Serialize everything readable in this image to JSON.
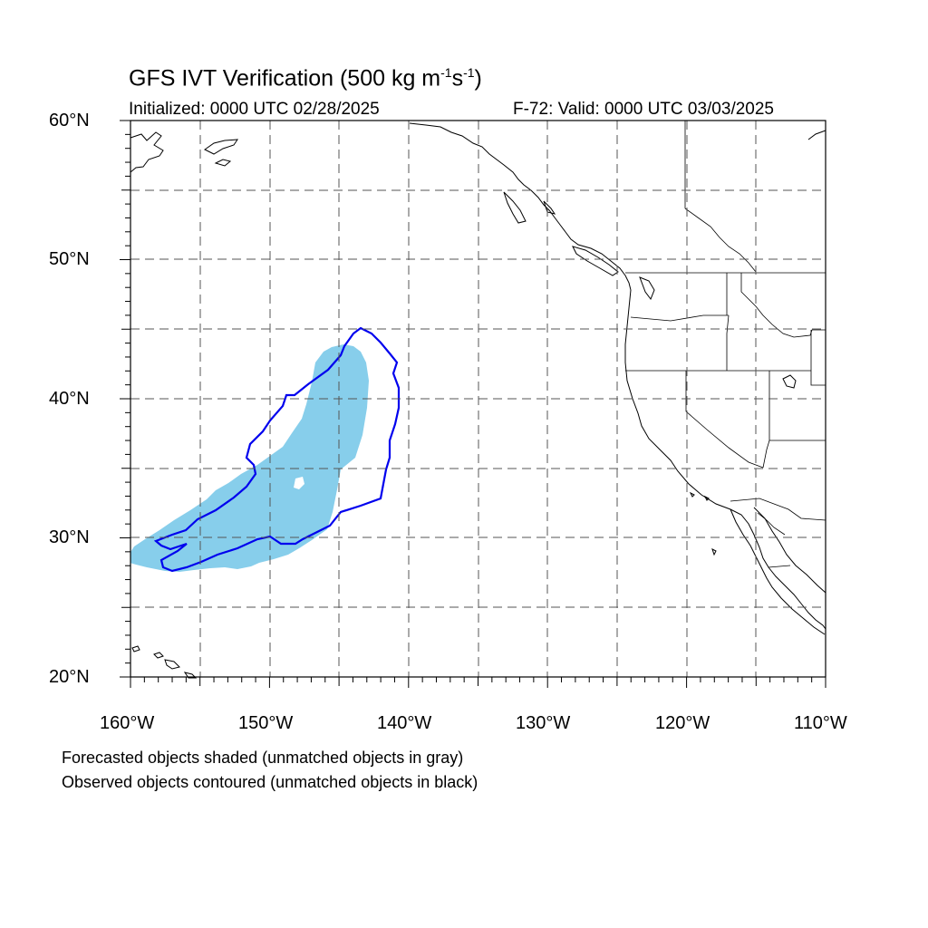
{
  "title": {
    "main": "GFS IVT Verification (500 kg m",
    "sup1": "-1",
    "mid": "s",
    "sup2": "-1",
    "end": ")"
  },
  "subtitle": {
    "initialized": "Initialized: 0000 UTC 02/28/2025",
    "valid": "F-72: Valid: 0000 UTC 03/03/2025"
  },
  "axes": {
    "lat_labels": [
      "60°N",
      "50°N",
      "40°N",
      "30°N",
      "20°N"
    ],
    "lon_labels": [
      "160°W",
      "150°W",
      "140°W",
      "130°W",
      "120°W",
      "110°W"
    ]
  },
  "legend": {
    "line1": "Forecasted objects shaded (unmatched objects in gray)",
    "line2": "Observed objects contoured (unmatched objects in black)"
  },
  "colors": {
    "forecast_fill": "#87ceeb",
    "observed_contour": "#0000ee",
    "coastline": "#000000",
    "grid": "#555555"
  },
  "map": {
    "projection": "cylindrical equidistant",
    "lon_range": [
      -160,
      -110
    ],
    "lat_range": [
      20,
      60
    ],
    "grid_step_deg": 5
  }
}
